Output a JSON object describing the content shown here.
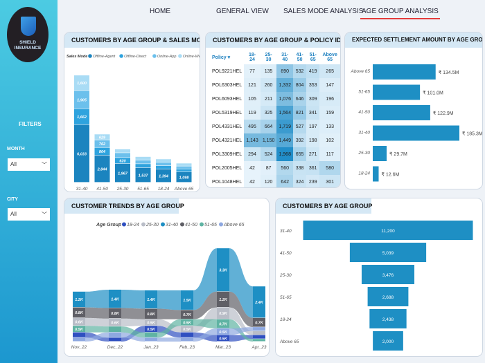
{
  "brand": {
    "line1": "SHIELD",
    "line2": "INSURANCE"
  },
  "sidebar": {
    "filters_title": "FILTERS",
    "month_label": "MONTH",
    "month_value": "All",
    "city_label": "CITY",
    "city_value": "All",
    "chevron": "chevron-down-icon"
  },
  "nav": {
    "tabs": [
      {
        "label": "HOME"
      },
      {
        "label": "GENERAL VIEW"
      },
      {
        "label": "SALES MODE ANALYSIS"
      },
      {
        "label": "AGE GROUP ANALYSIS",
        "active": true
      }
    ]
  },
  "colors": {
    "accent": "#e43b3b",
    "bar": "#1e8fc4"
  },
  "chart_data": [
    {
      "type": "bar",
      "stacked": true,
      "title": "CUSTOMERS BY AGE GROUP & SALES MODE",
      "legend_title": "Sales Mode :",
      "legend": "top",
      "categories": [
        "31-40",
        "41-50",
        "25-30",
        "51-65",
        "18-24",
        "Above 65"
      ],
      "series": [
        {
          "name": "Offline-Agent",
          "color": "#1b84bf",
          "values": [
            6033,
            2844,
            1967,
            1537,
            1394,
            1098
          ],
          "labels": [
            "6,033",
            "2,844",
            "1,967",
            "1,537",
            "1,394",
            "1,098"
          ]
        },
        {
          "name": "Offline-Direct",
          "color": "#2ea3de",
          "values": [
            1662,
            804,
            620,
            400,
            350,
            300
          ],
          "labels": [
            "1,662",
            "804",
            "620",
            "",
            "",
            ""
          ]
        },
        {
          "name": "Online-App",
          "color": "#6cc0ec",
          "values": [
            1905,
            762,
            500,
            380,
            350,
            300
          ],
          "labels": [
            "1,905",
            "762",
            "",
            "",
            "",
            ""
          ]
        },
        {
          "name": "Online-Website",
          "color": "#a9dcf5",
          "values": [
            1600,
            629,
            389,
            371,
            344,
            302
          ],
          "labels": [
            "1,600",
            "629",
            "",
            "",
            "",
            ""
          ]
        }
      ]
    },
    {
      "type": "table",
      "title": "CUSTOMERS BY AGE GROUP & POLICY ID",
      "columns": [
        "Policy",
        "18-24",
        "25-30",
        "31-40",
        "41-50",
        "51-65",
        "Above 65"
      ],
      "rows": [
        [
          "POL9221HEL",
          77,
          135,
          890,
          532,
          419,
          265
        ],
        [
          "POL6303HEL",
          121,
          260,
          1332,
          804,
          353,
          147
        ],
        [
          "POL6093HEL",
          105,
          211,
          1076,
          646,
          309,
          196
        ],
        [
          "POL5319HEL",
          119,
          325,
          1564,
          821,
          341,
          159
        ],
        [
          "POL4331HEL",
          495,
          664,
          1719,
          527,
          197,
          133
        ],
        [
          "POL4321HEL",
          1143,
          1150,
          1449,
          392,
          198,
          102
        ],
        [
          "POL3309HEL",
          294,
          524,
          1968,
          655,
          271,
          117
        ],
        [
          "POL2005HEL",
          42,
          87,
          560,
          338,
          361,
          580
        ],
        [
          "POL1048HEL",
          42,
          120,
          642,
          324,
          239,
          301
        ]
      ]
    },
    {
      "type": "bar",
      "orientation": "horizontal",
      "title": "EXPECTED SETTLEMENT AMOUNT BY AGE GROUP",
      "categories": [
        "Above 65",
        "51-65",
        "41-50",
        "31-40",
        "25-30",
        "18-24"
      ],
      "values": [
        134.5,
        101.0,
        122.9,
        185.3,
        29.7,
        12.6
      ],
      "labels": [
        "₹ 134.5M",
        "₹ 101.0M",
        "₹ 122.9M",
        "₹ 185.3M",
        "₹ 29.7M",
        "₹ 12.6M"
      ]
    },
    {
      "type": "area",
      "subtype": "ribbon",
      "title": "CUSTOMER TRENDS BY AGE GROUP",
      "legend_title": "Age Group",
      "legend": "top",
      "categories": [
        "Nov_22",
        "Dec_22",
        "Jan_23",
        "Feb_23",
        "Mar_23",
        "Apr_23"
      ],
      "series": [
        {
          "name": "18-24",
          "color": "#2f4fc0",
          "values": [
            0.4,
            0.3,
            0.5,
            0.4,
            0.5,
            0.3
          ],
          "labels": [
            "",
            "",
            "0.5K",
            "",
            "0.5K",
            ""
          ]
        },
        {
          "name": "25-30",
          "color": "#b9bdc7",
          "values": [
            0.6,
            0.6,
            0.5,
            0.5,
            0.9,
            0.3
          ],
          "labels": [
            "0.6K",
            "0.6K",
            "0.5K",
            "0.5K",
            "0.9K",
            ""
          ]
        },
        {
          "name": "31-40",
          "color": "#1e8fc4",
          "values": [
            1.2,
            1.4,
            1.4,
            1.5,
            3.3,
            2.4
          ],
          "labels": [
            "1.2K",
            "1.4K",
            "1.4K",
            "1.5K",
            "3.3K",
            "2.4K"
          ]
        },
        {
          "name": "41-50",
          "color": "#5f5f66",
          "values": [
            0.8,
            0.8,
            0.8,
            0.7,
            1.2,
            0.7
          ],
          "labels": [
            "0.8K",
            "0.8K",
            "0.8K",
            "0.7K",
            "1.2K",
            "0.7K"
          ]
        },
        {
          "name": "51-65",
          "color": "#5fb3a3",
          "values": [
            0.5,
            0.45,
            0.4,
            0.5,
            0.7,
            0.2
          ],
          "labels": [
            "0.5K",
            "",
            "",
            "0.5K",
            "0.7K",
            ""
          ]
        },
        {
          "name": "Above 65",
          "color": "#8ea8e0",
          "values": [
            0.3,
            0.4,
            0.3,
            0.3,
            0.5,
            0.3
          ],
          "labels": [
            "",
            "",
            "",
            "",
            "0.5K",
            ""
          ]
        }
      ]
    },
    {
      "type": "bar",
      "subtype": "funnel",
      "title": "CUSTOMERS BY AGE GROUP",
      "categories": [
        "31-40",
        "41-50",
        "25-30",
        "51-65",
        "18-24",
        "Above 65"
      ],
      "values": [
        11200,
        5039,
        3476,
        2688,
        2438,
        2000
      ],
      "labels": [
        "11,200",
        "5,039",
        "3,476",
        "2,688",
        "2,438",
        "2,000"
      ]
    }
  ]
}
